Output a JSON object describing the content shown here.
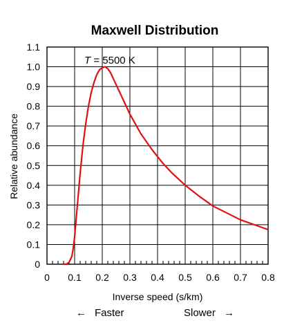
{
  "chart_data": {
    "type": "line",
    "title": "Maxwell Distribution",
    "xlabel": "Inverse speed (s/km)",
    "ylabel": "Relative abundance",
    "xlim": [
      0,
      0.8
    ],
    "ylim": [
      0,
      1.1
    ],
    "xticks": [
      "0",
      "0.1",
      "0.2",
      "0.3",
      "0.4",
      "0.5",
      "0.6",
      "0.7",
      "0.8"
    ],
    "yticks": [
      "0",
      "0.1",
      "0.2",
      "0.3",
      "0.4",
      "0.5",
      "0.6",
      "0.7",
      "0.8",
      "0.9",
      "1.0",
      "1.1"
    ],
    "grid": true,
    "line_color": "#dd1111",
    "series": [
      {
        "x": [
          0.06,
          0.07,
          0.08,
          0.09,
          0.095,
          0.1,
          0.105,
          0.11,
          0.12,
          0.13,
          0.14,
          0.15,
          0.16,
          0.17,
          0.18,
          0.19,
          0.2,
          0.21,
          0.22,
          0.23,
          0.24,
          0.25,
          0.26,
          0.28,
          0.3,
          0.32,
          0.34,
          0.36,
          0.38,
          0.4,
          0.42,
          0.45,
          0.5,
          0.55,
          0.6,
          0.65,
          0.7,
          0.75,
          0.8
        ],
        "y": [
          0.0,
          0.0,
          0.01,
          0.04,
          0.08,
          0.14,
          0.22,
          0.3,
          0.46,
          0.6,
          0.71,
          0.8,
          0.87,
          0.92,
          0.96,
          0.985,
          0.995,
          1.0,
          0.99,
          0.97,
          0.94,
          0.91,
          0.88,
          0.82,
          0.76,
          0.71,
          0.66,
          0.62,
          0.58,
          0.545,
          0.51,
          0.465,
          0.4,
          0.345,
          0.295,
          0.26,
          0.225,
          0.2,
          0.175
        ]
      }
    ],
    "annotation": "T = 5500 K",
    "annotation_italic": "T",
    "annotation_rest": " = 5500 K",
    "direction_left": "Faster",
    "direction_right": "Slower",
    "arrow_left": "←",
    "arrow_right": "→"
  }
}
